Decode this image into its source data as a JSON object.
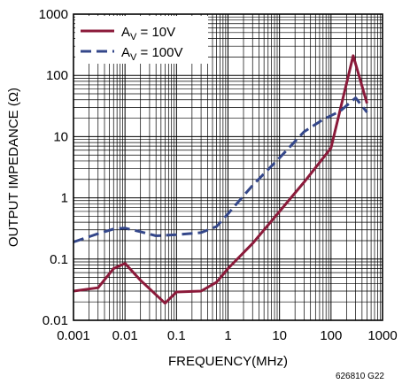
{
  "chart_data": {
    "type": "line",
    "x_scale": "log",
    "y_scale": "log",
    "xlabel": "FREQUENCY(MHz)",
    "ylabel": "OUTPUT IMPEDANCE (Ω)",
    "xlim": [
      0.001,
      1000
    ],
    "ylim": [
      0.01,
      1000
    ],
    "x_tick_labels": [
      "0.001",
      "0.01",
      "0.1",
      "1",
      "10",
      "100",
      "1000"
    ],
    "y_tick_labels": [
      "0.01",
      "0.1",
      "1",
      "10",
      "100",
      "1000"
    ],
    "grid": true,
    "legend_position": "top-left",
    "series": [
      {
        "name": "A",
        "name_sub": "V",
        "name_suffix": " = 10V",
        "color": "#8b1a3a",
        "dash": "solid",
        "x": [
          0.001,
          0.003,
          0.006,
          0.01,
          0.02,
          0.06,
          0.1,
          0.3,
          0.6,
          1,
          3,
          10,
          30,
          100,
          270,
          500
        ],
        "y": [
          0.03,
          0.034,
          0.07,
          0.085,
          0.045,
          0.019,
          0.029,
          0.03,
          0.042,
          0.07,
          0.18,
          0.6,
          1.8,
          6.5,
          210,
          35
        ]
      },
      {
        "name": "A",
        "name_sub": "V",
        "name_suffix": " = 100V",
        "color": "#34478a",
        "dash": "dashed",
        "x": [
          0.001,
          0.003,
          0.006,
          0.01,
          0.02,
          0.04,
          0.1,
          0.3,
          0.6,
          1,
          3,
          10,
          30,
          70,
          100,
          150,
          300,
          500
        ],
        "y": [
          0.19,
          0.26,
          0.31,
          0.32,
          0.28,
          0.24,
          0.25,
          0.27,
          0.34,
          0.55,
          1.6,
          4.5,
          12,
          19,
          22,
          26,
          43,
          25
        ]
      }
    ]
  },
  "figure_id": "626810 G22"
}
